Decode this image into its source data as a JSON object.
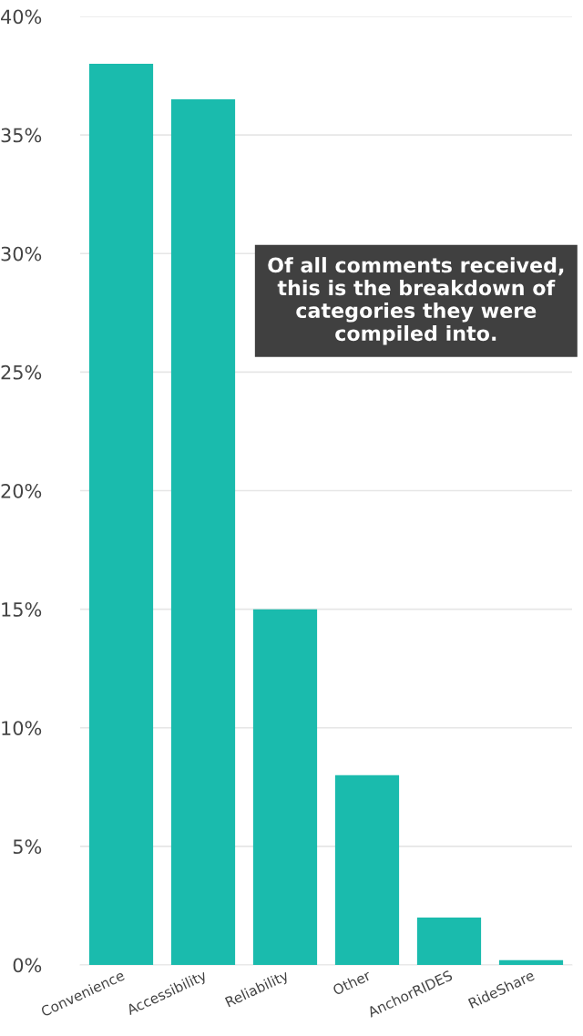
{
  "chart_data": {
    "type": "bar",
    "categories": [
      "Convenience",
      "Accessibility",
      "Reliability",
      "Other",
      "AnchorRIDES",
      "RideShare"
    ],
    "values": [
      38.0,
      36.5,
      15.0,
      8.0,
      2.0,
      0.2
    ],
    "color": "#1abbad",
    "ylim": [
      0,
      40
    ],
    "yticks": [
      {
        "value": 0,
        "label": "0%"
      },
      {
        "value": 5,
        "label": "5%"
      },
      {
        "value": 10,
        "label": "10%"
      },
      {
        "value": 15,
        "label": "15%"
      },
      {
        "value": 20,
        "label": "20%"
      },
      {
        "value": 25,
        "label": "25%"
      },
      {
        "value": 30,
        "label": "30%"
      },
      {
        "value": 35,
        "label": "35%"
      },
      {
        "value": 40,
        "label": "40%"
      }
    ],
    "grid": "y",
    "annotations": [
      "Of all comments received, this is the breakdown of categories they were compiled into."
    ]
  }
}
